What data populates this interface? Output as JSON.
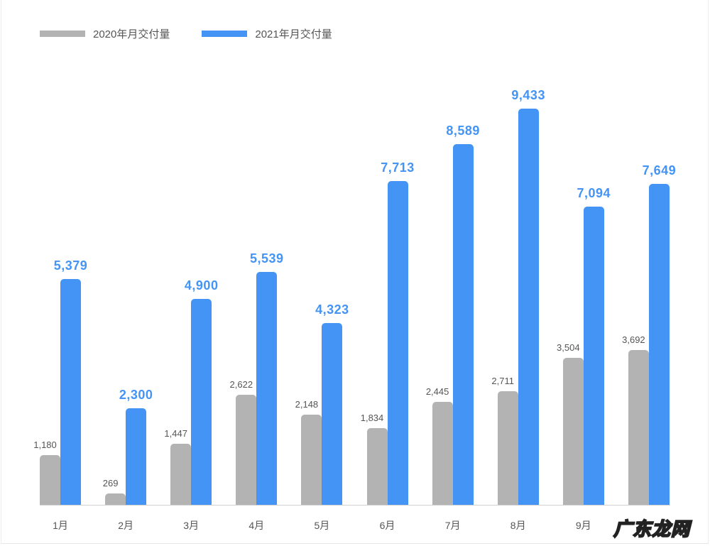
{
  "legend": [
    {
      "label": "2020年月交付量",
      "color": "#b3b3b3"
    },
    {
      "label": "2021年月交付量",
      "color": "#4394f5"
    }
  ],
  "watermark": "广东龙网",
  "chart_data": {
    "type": "bar",
    "title": "",
    "xlabel": "",
    "ylabel": "",
    "grid": false,
    "legend_position": "top-left",
    "categories": [
      "1月",
      "2月",
      "3月",
      "4月",
      "5月",
      "6月",
      "7月",
      "8月",
      "9月",
      ""
    ],
    "series": [
      {
        "name": "2020年月交付量",
        "color": "#b3b3b3",
        "values": [
          1180,
          269,
          1447,
          2622,
          2148,
          1834,
          2445,
          2711,
          3504,
          3692
        ],
        "labels": [
          "1,180",
          "269",
          "1,447",
          "2,622",
          "2,148",
          "1,834",
          "2,445",
          "2,711",
          "3,504",
          "3,692"
        ]
      },
      {
        "name": "2021年月交付量",
        "color": "#4394f5",
        "values": [
          5379,
          2300,
          4900,
          5539,
          4323,
          7713,
          8589,
          9433,
          7094,
          7649
        ],
        "labels": [
          "5,379",
          "2,300",
          "4,900",
          "5,539",
          "4,323",
          "7,713",
          "8,589",
          "9,433",
          "7,094",
          "7,649"
        ]
      }
    ],
    "ylim": [
      0,
      9433
    ]
  }
}
